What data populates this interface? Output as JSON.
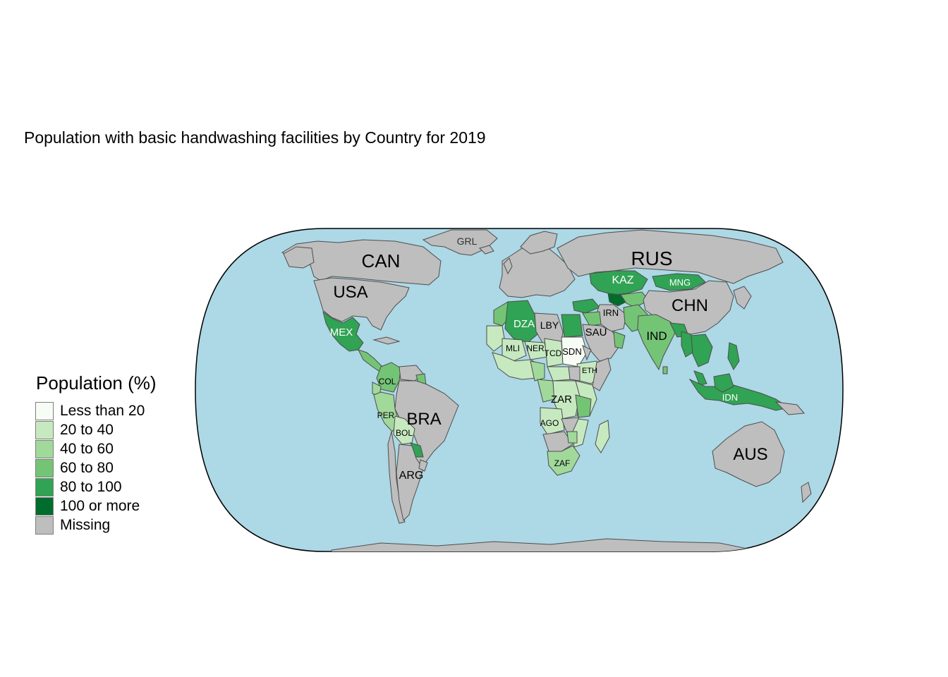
{
  "title": "Population with basic handwashing facilities by Country for 2019",
  "legend": {
    "title": "Population (%)",
    "items": [
      {
        "label": "Less than 20",
        "color": "#f7fcf5"
      },
      {
        "label": "20 to 40",
        "color": "#c7e9c0"
      },
      {
        "label": "40 to 60",
        "color": "#a1d99b"
      },
      {
        "label": "60 to 80",
        "color": "#74c476"
      },
      {
        "label": "80 to 100",
        "color": "#31a354"
      },
      {
        "label": "100 or more",
        "color": "#006d2c"
      },
      {
        "label": "Missing",
        "color": "#bebebe"
      }
    ]
  },
  "colors": {
    "ocean": "#add8e6",
    "missing": "#bebebe",
    "border": "#4d4d4d"
  },
  "country_labels": {
    "can": "CAN",
    "usa": "USA",
    "grl": "GRL",
    "rus": "RUS",
    "kaz": "KAZ",
    "mng": "MNG",
    "chn": "CHN",
    "irn": "IRN",
    "ind": "IND",
    "sau": "SAU",
    "mex": "MEX",
    "dza": "DZA",
    "lby": "LBY",
    "mli": "MLI",
    "ner": "NER",
    "tcd": "TCD",
    "sdn": "SDN",
    "eth": "ETH",
    "col": "COL",
    "per": "PER",
    "bra": "BRA",
    "bol": "BOL",
    "arg": "ARG",
    "zar": "ZAR",
    "ago": "AGO",
    "zaf": "ZAF",
    "idn": "IDN",
    "aus": "AUS"
  }
}
